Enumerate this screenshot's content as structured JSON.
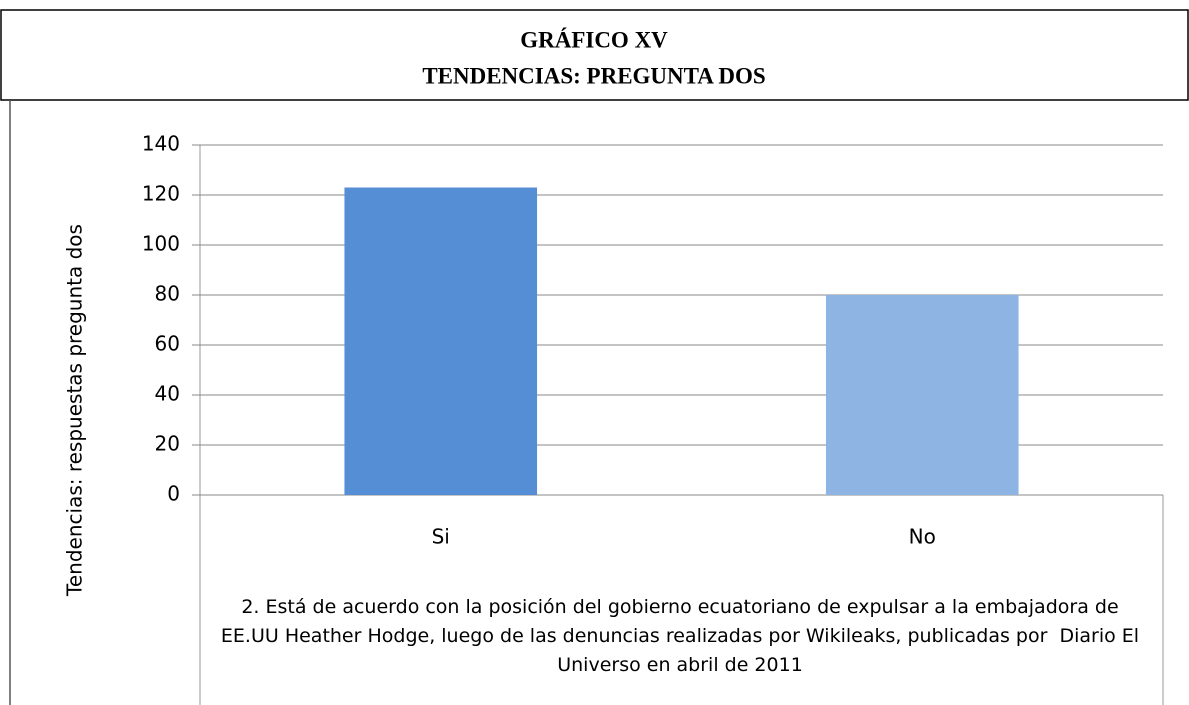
{
  "chart_data": {
    "type": "bar",
    "title": [
      "GRÁFICO XV",
      "TENDENCIAS: PREGUNTA DOS"
    ],
    "y_label": "Tendencias: respuestas pregunta dos",
    "x_label": "2. Está de acuerdo con la posición del gobierno ecuatoriano de expulsar a la embajadora de EE.UU Heather Hodge, luego de las denuncias realizadas por Wikileaks, publicadas por  Diario El Universo en abril de 2011",
    "categories": [
      "Si",
      "No"
    ],
    "values": [
      123,
      80
    ],
    "colors": [
      "#558ed5",
      "#8eb4e3"
    ],
    "ylim": [
      0,
      140
    ],
    "yticks": [
      0,
      20,
      40,
      60,
      80,
      100,
      120,
      140
    ],
    "grid": true
  }
}
